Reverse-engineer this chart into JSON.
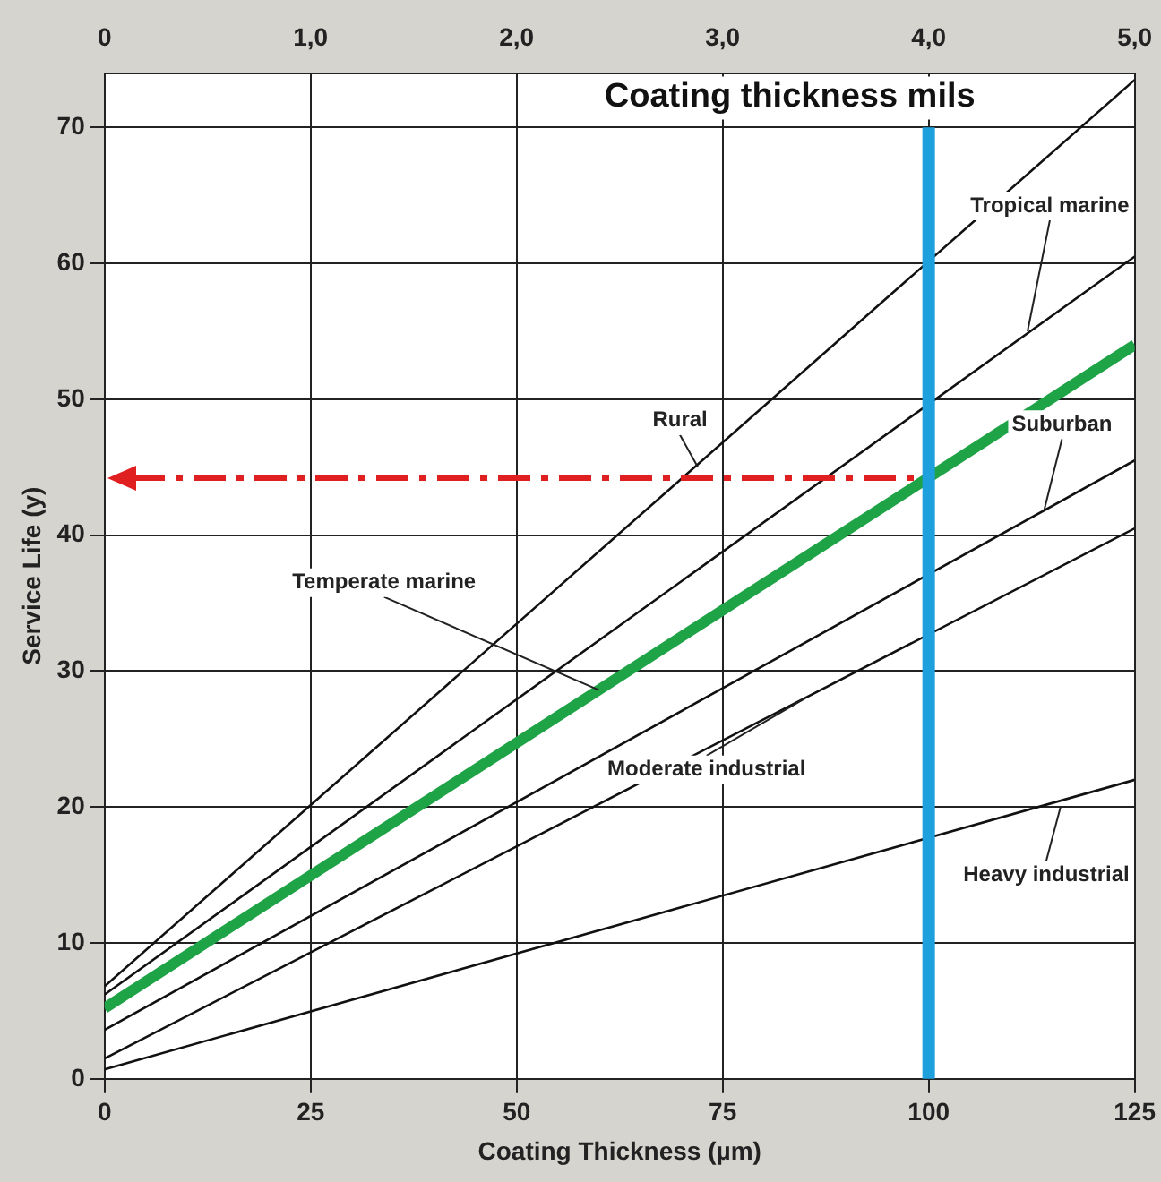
{
  "chart_data": {
    "type": "line",
    "xlabel": "Coating Thickness (µm)",
    "ylabel": "Service Life (y)",
    "x2label": "Coating thickness mils",
    "x": [
      0,
      125
    ],
    "series": [
      {
        "color": "#111111",
        "values": [
          6.8,
          73.5
        ]
      },
      {
        "color": "#111111",
        "values": [
          6.2,
          60.5
        ]
      },
      {
        "color": "#1fa347",
        "values": [
          5.2,
          54
        ]
      },
      {
        "color": "#111111",
        "values": [
          3.6,
          45.5
        ]
      },
      {
        "color": "#111111",
        "values": [
          1.5,
          40.5
        ]
      },
      {
        "color": "#111111",
        "values": [
          0.7,
          22
        ]
      }
    ],
    "ref_lines": [
      {
        "axis": "x",
        "value": 100,
        "color": "#1ea0dc"
      }
    ],
    "annotations": [
      {
        "text": "Rural",
        "x": 72,
        "y": 45
      },
      {
        "text": "Tropical marine",
        "x": 112,
        "y": 55
      },
      {
        "text": "Temperate marine",
        "x": 60,
        "y": 28.6
      },
      {
        "text": "Suburban",
        "x": 114,
        "y": 41.8
      },
      {
        "text": "Moderate industrial",
        "x": 85,
        "y": 28
      },
      {
        "text": "Heavy industrial",
        "x": 116,
        "y": 20
      }
    ],
    "xlim": [
      0,
      125
    ],
    "xticks": [
      0,
      25,
      50,
      75,
      100,
      125
    ],
    "x2lim": [
      0,
      5
    ],
    "x2ticks": [
      0,
      {
        "value": 1,
        "label": "1,0"
      },
      {
        "value": 2,
        "label": "2,0"
      },
      {
        "value": 3,
        "label": "3,0"
      },
      {
        "value": 4,
        "label": "4,0"
      },
      {
        "value": 5,
        "label": "5,0"
      }
    ],
    "ylim": [
      0,
      74
    ],
    "yticks": [
      0,
      10,
      20,
      30,
      40,
      50,
      60,
      70
    ],
    "grid": true,
    "legend": false,
    "marker": "none",
    "line_style": "solid"
  }
}
